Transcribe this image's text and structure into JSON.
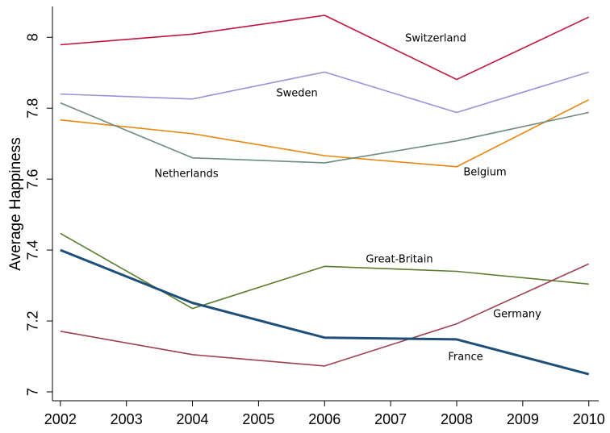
{
  "chart_data": {
    "type": "line",
    "y_label": "Average Happiness",
    "x": [
      2002,
      2004,
      2006,
      2008,
      2010
    ],
    "xlim": [
      2001.88,
      2010.15
    ],
    "xticks": [
      2002,
      2003,
      2004,
      2005,
      2006,
      2007,
      2008,
      2009,
      2010
    ],
    "ylim": [
      6.975,
      8.087
    ],
    "yticks": [
      7,
      7.2,
      7.4,
      7.6,
      7.8,
      8
    ],
    "grid": false,
    "series": [
      {
        "name": "Switzerland",
        "color": "#c0143c",
        "values": [
          7.979,
          8.009,
          8.062,
          7.881,
          8.057
        ]
      },
      {
        "name": "Sweden",
        "color": "#9e8fd6",
        "values": [
          7.84,
          7.826,
          7.902,
          7.788,
          7.902
        ]
      },
      {
        "name": "Belgium",
        "color": "#e8860f",
        "values": [
          7.767,
          7.728,
          7.666,
          7.635,
          7.824
        ]
      },
      {
        "name": "Netherlands",
        "color": "#6e8b82",
        "values": [
          7.815,
          7.66,
          7.646,
          7.708,
          7.788
        ]
      },
      {
        "name": "Great-Britain",
        "color": "#5a7d2e",
        "values": [
          7.447,
          7.235,
          7.354,
          7.34,
          7.304
        ]
      },
      {
        "name": "Germany",
        "color": "#a0404e",
        "values": [
          7.171,
          7.105,
          7.073,
          7.192,
          7.361
        ]
      },
      {
        "name": "France",
        "color": "#1f4e79",
        "values": [
          7.4,
          7.251,
          7.153,
          7.148,
          7.05
        ]
      }
    ]
  }
}
